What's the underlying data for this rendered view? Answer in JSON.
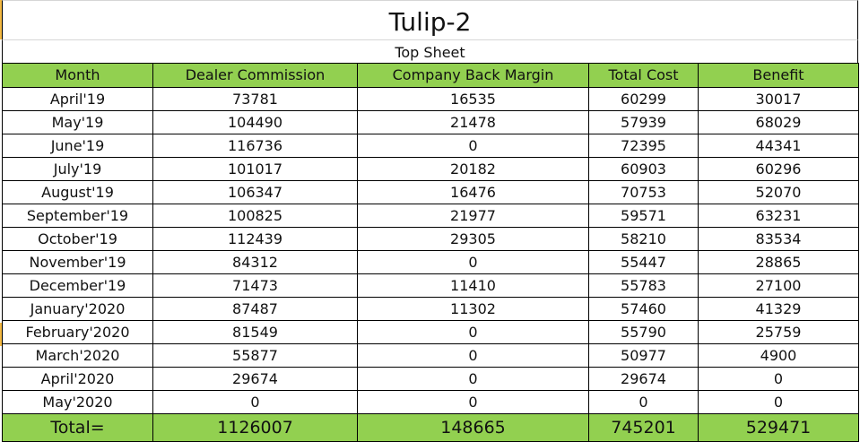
{
  "title": "Tulip-2",
  "subtitle": "Top Sheet",
  "columns": [
    "Month",
    "Dealer Commission",
    "Company Back Margin",
    "Total Cost",
    "Benefit"
  ],
  "rows": [
    [
      "April'19",
      "73781",
      "16535",
      "60299",
      "30017"
    ],
    [
      "May'19",
      "104490",
      "21478",
      "57939",
      "68029"
    ],
    [
      "June'19",
      "116736",
      "0",
      "72395",
      "44341"
    ],
    [
      "July'19",
      "101017",
      "20182",
      "60903",
      "60296"
    ],
    [
      "August'19",
      "106347",
      "16476",
      "70753",
      "52070"
    ],
    [
      "September'19",
      "100825",
      "21977",
      "59571",
      "63231"
    ],
    [
      "October'19",
      "112439",
      "29305",
      "58210",
      "83534"
    ],
    [
      "November'19",
      "84312",
      "0",
      "55447",
      "28865"
    ],
    [
      "December'19",
      "71473",
      "11410",
      "55783",
      "27100"
    ],
    [
      "January'2020",
      "87487",
      "11302",
      "57460",
      "41329"
    ],
    [
      "February'2020",
      "81549",
      "0",
      "55790",
      "25759"
    ],
    [
      "March'2020",
      "55877",
      "0",
      "50977",
      "4900"
    ],
    [
      "April'2020",
      "29674",
      "0",
      "29674",
      "0"
    ],
    [
      "May'2020",
      "0",
      "0",
      "0",
      "0"
    ]
  ],
  "totals": [
    "Total=",
    "1126007",
    "148665",
    "745201",
    "529471"
  ],
  "colors": {
    "header_fill": "#92d050",
    "grid": "#000000"
  }
}
